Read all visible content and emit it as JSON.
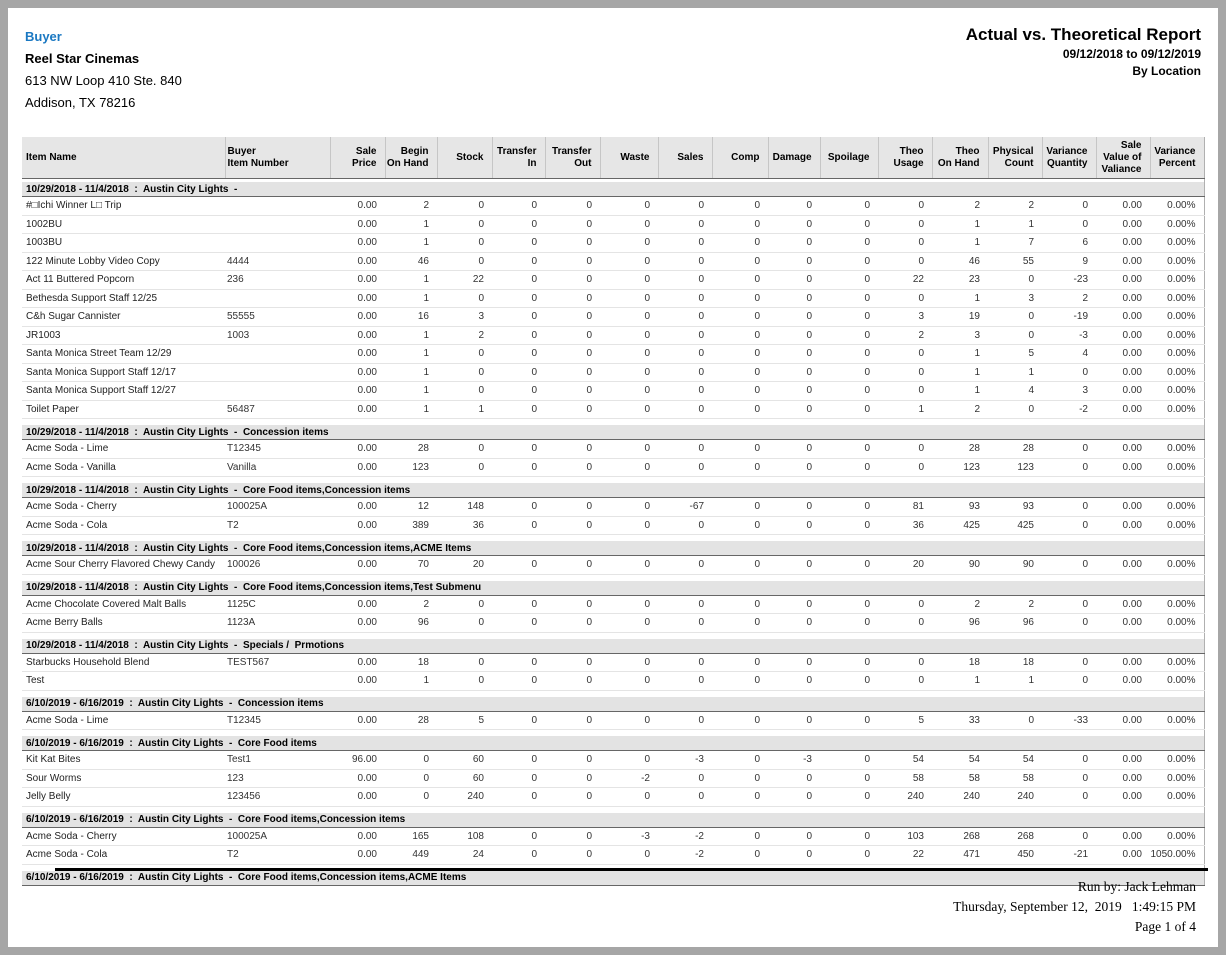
{
  "colors": {
    "accent_blue": "#1a78c2",
    "band_gray": "#e3e3e3",
    "header_gray": "#e6e6e6",
    "frame_gray": "#a6a6a6"
  },
  "page": {
    "buyer_label": "Buyer",
    "company": "Reel Star Cinemas",
    "address_line1": "613 NW Loop 410 Ste. 840",
    "address_line2": "Addison, TX 78216",
    "report_title": "Actual vs. Theoretical Report",
    "report_range": "09/12/2018 to 09/12/2019",
    "report_grouping": "By Location"
  },
  "table": {
    "columns": [
      "Item Name",
      "Buyer\nItem Number",
      "Sale\nPrice",
      "Begin\nOn Hand",
      "Stock",
      "Transfer\nIn",
      "Transfer\nOut",
      "Waste",
      "Sales",
      "Comp",
      "Damage",
      "Spoilage",
      "Theo\nUsage",
      "Theo\nOn Hand",
      "Physical\nCount",
      "Variance\nQuantity",
      "Sale\nValue of\nValiance",
      "Variance\nPercent"
    ],
    "groups": [
      {
        "label": "10/29/2018 - 11/4/2018  :  Austin City Lights  -",
        "rows": [
          [
            "#□Ichi Winner L□  Trip",
            "",
            "0.00",
            "2",
            "0",
            "0",
            "0",
            "0",
            "0",
            "0",
            "0",
            "0",
            "0",
            "2",
            "2",
            "0",
            "0.00",
            "0.00%"
          ],
          [
            "1002BU",
            "",
            "0.00",
            "1",
            "0",
            "0",
            "0",
            "0",
            "0",
            "0",
            "0",
            "0",
            "0",
            "1",
            "1",
            "0",
            "0.00",
            "0.00%"
          ],
          [
            "1003BU",
            "",
            "0.00",
            "1",
            "0",
            "0",
            "0",
            "0",
            "0",
            "0",
            "0",
            "0",
            "0",
            "1",
            "7",
            "6",
            "0.00",
            "0.00%"
          ],
          [
            "122 Minute Lobby Video Copy",
            "4444",
            "0.00",
            "46",
            "0",
            "0",
            "0",
            "0",
            "0",
            "0",
            "0",
            "0",
            "0",
            "46",
            "55",
            "9",
            "0.00",
            "0.00%"
          ],
          [
            "Act 11 Buttered Popcorn",
            "236",
            "0.00",
            "1",
            "22",
            "0",
            "0",
            "0",
            "0",
            "0",
            "0",
            "0",
            "22",
            "23",
            "0",
            "-23",
            "0.00",
            "0.00%"
          ],
          [
            "Bethesda Support Staff 12/25",
            "",
            "0.00",
            "1",
            "0",
            "0",
            "0",
            "0",
            "0",
            "0",
            "0",
            "0",
            "0",
            "1",
            "3",
            "2",
            "0.00",
            "0.00%"
          ],
          [
            "C&h Sugar Cannister",
            "55555",
            "0.00",
            "16",
            "3",
            "0",
            "0",
            "0",
            "0",
            "0",
            "0",
            "0",
            "3",
            "19",
            "0",
            "-19",
            "0.00",
            "0.00%"
          ],
          [
            "JR1003",
            "1003",
            "0.00",
            "1",
            "2",
            "0",
            "0",
            "0",
            "0",
            "0",
            "0",
            "0",
            "2",
            "3",
            "0",
            "-3",
            "0.00",
            "0.00%"
          ],
          [
            "Santa Monica Street Team 12/29",
            "",
            "0.00",
            "1",
            "0",
            "0",
            "0",
            "0",
            "0",
            "0",
            "0",
            "0",
            "0",
            "1",
            "5",
            "4",
            "0.00",
            "0.00%"
          ],
          [
            "Santa Monica Support Staff 12/17",
            "",
            "0.00",
            "1",
            "0",
            "0",
            "0",
            "0",
            "0",
            "0",
            "0",
            "0",
            "0",
            "1",
            "1",
            "0",
            "0.00",
            "0.00%"
          ],
          [
            "Santa Monica Support Staff 12/27",
            "",
            "0.00",
            "1",
            "0",
            "0",
            "0",
            "0",
            "0",
            "0",
            "0",
            "0",
            "0",
            "1",
            "4",
            "3",
            "0.00",
            "0.00%"
          ],
          [
            "Toilet Paper",
            "56487",
            "0.00",
            "1",
            "1",
            "0",
            "0",
            "0",
            "0",
            "0",
            "0",
            "0",
            "1",
            "2",
            "0",
            "-2",
            "0.00",
            "0.00%"
          ]
        ]
      },
      {
        "label": "10/29/2018 - 11/4/2018  :  Austin City Lights  -  Concession items",
        "rows": [
          [
            "Acme Soda - Lime",
            "T12345",
            "0.00",
            "28",
            "0",
            "0",
            "0",
            "0",
            "0",
            "0",
            "0",
            "0",
            "0",
            "28",
            "28",
            "0",
            "0.00",
            "0.00%"
          ],
          [
            "Acme Soda - Vanilla",
            "Vanilla",
            "0.00",
            "123",
            "0",
            "0",
            "0",
            "0",
            "0",
            "0",
            "0",
            "0",
            "0",
            "123",
            "123",
            "0",
            "0.00",
            "0.00%"
          ]
        ]
      },
      {
        "label": "10/29/2018 - 11/4/2018  :  Austin City Lights  -  Core Food items,Concession items",
        "rows": [
          [
            "Acme Soda - Cherry",
            "100025A",
            "0.00",
            "12",
            "148",
            "0",
            "0",
            "0",
            "-67",
            "0",
            "0",
            "0",
            "81",
            "93",
            "93",
            "0",
            "0.00",
            "0.00%"
          ],
          [
            "Acme Soda - Cola",
            "T2",
            "0.00",
            "389",
            "36",
            "0",
            "0",
            "0",
            "0",
            "0",
            "0",
            "0",
            "36",
            "425",
            "425",
            "0",
            "0.00",
            "0.00%"
          ]
        ]
      },
      {
        "label": "10/29/2018 - 11/4/2018  :  Austin City Lights  -  Core Food items,Concession items,ACME Items",
        "rows": [
          [
            "Acme Sour Cherry Flavored Chewy Candy",
            "100026",
            "0.00",
            "70",
            "20",
            "0",
            "0",
            "0",
            "0",
            "0",
            "0",
            "0",
            "20",
            "90",
            "90",
            "0",
            "0.00",
            "0.00%"
          ]
        ]
      },
      {
        "label": "10/29/2018 - 11/4/2018  :  Austin City Lights  -  Core Food items,Concession items,Test Submenu",
        "rows": [
          [
            "Acme Chocolate Covered Malt Balls",
            "1125C",
            "0.00",
            "2",
            "0",
            "0",
            "0",
            "0",
            "0",
            "0",
            "0",
            "0",
            "0",
            "2",
            "2",
            "0",
            "0.00",
            "0.00%"
          ],
          [
            "Acme Berry Balls",
            "1123A",
            "0.00",
            "96",
            "0",
            "0",
            "0",
            "0",
            "0",
            "0",
            "0",
            "0",
            "0",
            "96",
            "96",
            "0",
            "0.00",
            "0.00%"
          ]
        ]
      },
      {
        "label": "10/29/2018 - 11/4/2018  :  Austin City Lights  -  Specials /  Prmotions",
        "rows": [
          [
            "Starbucks Household Blend",
            "TEST567",
            "0.00",
            "18",
            "0",
            "0",
            "0",
            "0",
            "0",
            "0",
            "0",
            "0",
            "0",
            "18",
            "18",
            "0",
            "0.00",
            "0.00%"
          ],
          [
            "Test",
            "",
            "0.00",
            "1",
            "0",
            "0",
            "0",
            "0",
            "0",
            "0",
            "0",
            "0",
            "0",
            "1",
            "1",
            "0",
            "0.00",
            "0.00%"
          ]
        ]
      },
      {
        "label": "6/10/2019 - 6/16/2019  :  Austin City Lights  -  Concession items",
        "rows": [
          [
            "Acme Soda - Lime",
            "T12345",
            "0.00",
            "28",
            "5",
            "0",
            "0",
            "0",
            "0",
            "0",
            "0",
            "0",
            "5",
            "33",
            "0",
            "-33",
            "0.00",
            "0.00%"
          ]
        ]
      },
      {
        "label": "6/10/2019 - 6/16/2019  :  Austin City Lights  -  Core Food items",
        "rows": [
          [
            "Kit Kat Bites",
            "Test1",
            "96.00",
            "0",
            "60",
            "0",
            "0",
            "0",
            "-3",
            "0",
            "-3",
            "0",
            "54",
            "54",
            "54",
            "0",
            "0.00",
            "0.00%"
          ],
          [
            "Sour Worms",
            "123",
            "0.00",
            "0",
            "60",
            "0",
            "0",
            "-2",
            "0",
            "0",
            "0",
            "0",
            "58",
            "58",
            "58",
            "0",
            "0.00",
            "0.00%"
          ],
          [
            "Jelly Belly",
            "123456",
            "0.00",
            "0",
            "240",
            "0",
            "0",
            "0",
            "0",
            "0",
            "0",
            "0",
            "240",
            "240",
            "240",
            "0",
            "0.00",
            "0.00%"
          ]
        ]
      },
      {
        "label": "6/10/2019 - 6/16/2019  :  Austin City Lights  -  Core Food items,Concession items",
        "rows": [
          [
            "Acme Soda - Cherry",
            "100025A",
            "0.00",
            "165",
            "108",
            "0",
            "0",
            "-3",
            "-2",
            "0",
            "0",
            "0",
            "103",
            "268",
            "268",
            "0",
            "0.00",
            "0.00%"
          ],
          [
            "Acme Soda - Cola",
            "T2",
            "0.00",
            "449",
            "24",
            "0",
            "0",
            "0",
            "-2",
            "0",
            "0",
            "0",
            "22",
            "471",
            "450",
            "-21",
            "0.00",
            "1050.00%"
          ]
        ]
      },
      {
        "label": "6/10/2019 - 6/16/2019  :  Austin City Lights  -  Core Food items,Concession items,ACME Items",
        "rows": []
      }
    ]
  },
  "footer": {
    "run_by": "Run by: Jack Lehman",
    "datetime": "Thursday, September 12,  2019   1:49:15 PM",
    "page": "Page 1 of 4"
  }
}
